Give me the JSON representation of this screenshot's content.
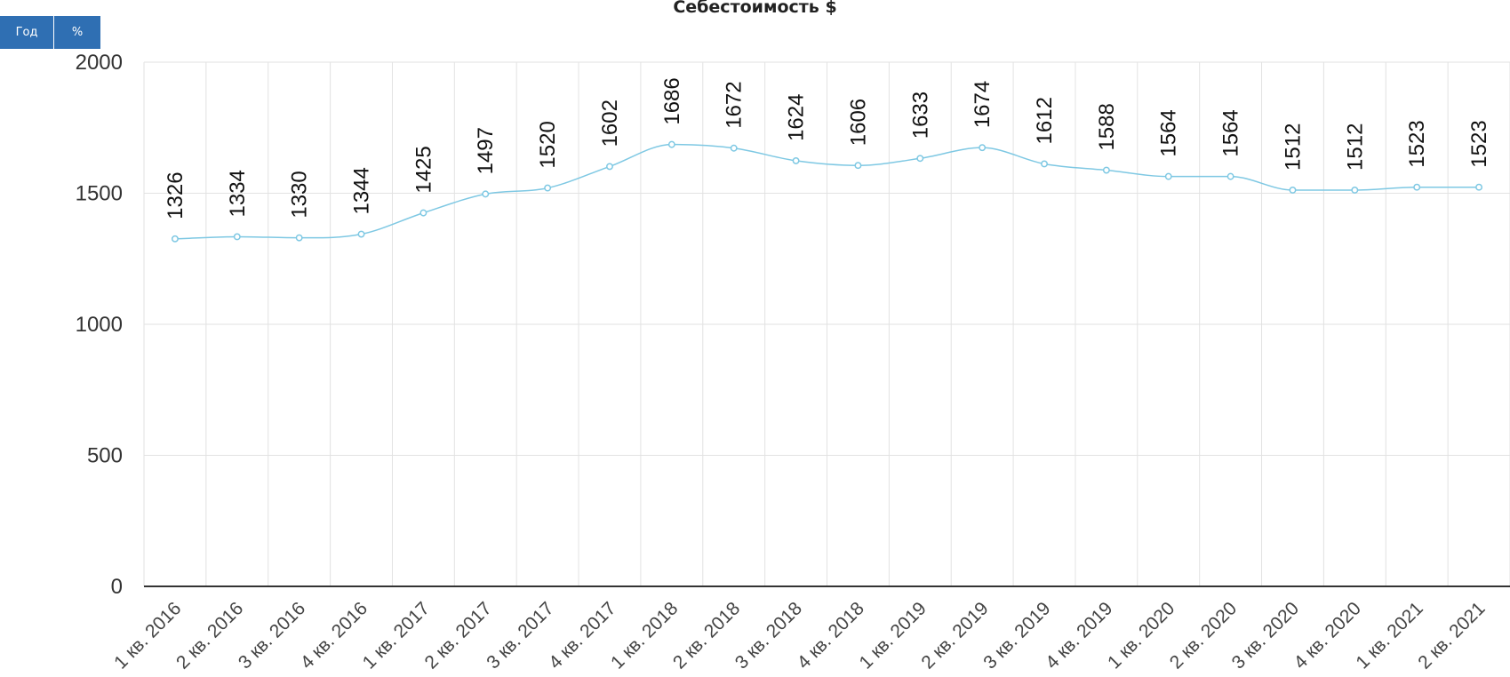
{
  "toolbar": {
    "year_label": "Год",
    "percent_label": "%"
  },
  "colors": {
    "button": "#2f6fb3",
    "line": "#7ec8e3",
    "grid": "#e2e2e2",
    "axis": "#333333"
  },
  "chart_data": {
    "type": "line",
    "title": "Себестоимость $",
    "xlabel": "",
    "ylabel": "",
    "ylim": [
      0,
      2000
    ],
    "yticks": [
      0,
      500,
      1000,
      1500,
      2000
    ],
    "grid": true,
    "categories": [
      "1 кв. 2016",
      "2 кв. 2016",
      "3 кв. 2016",
      "4 кв. 2016",
      "1 кв. 2017",
      "2 кв. 2017",
      "3 кв. 2017",
      "4 кв. 2017",
      "1 кв. 2018",
      "2 кв. 2018",
      "3 кв. 2018",
      "4 кв. 2018",
      "1 кв. 2019",
      "2 кв. 2019",
      "3 кв. 2019",
      "4 кв. 2019",
      "1 кв. 2020",
      "2 кв. 2020",
      "3 кв. 2020",
      "4 кв. 2020",
      "1 кв. 2021",
      "2 кв. 2021"
    ],
    "values": [
      1326,
      1334,
      1330,
      1344,
      1425,
      1497,
      1520,
      1602,
      1686,
      1672,
      1624,
      1606,
      1633,
      1674,
      1612,
      1588,
      1564,
      1564,
      1512,
      1512,
      1523,
      1523
    ]
  }
}
